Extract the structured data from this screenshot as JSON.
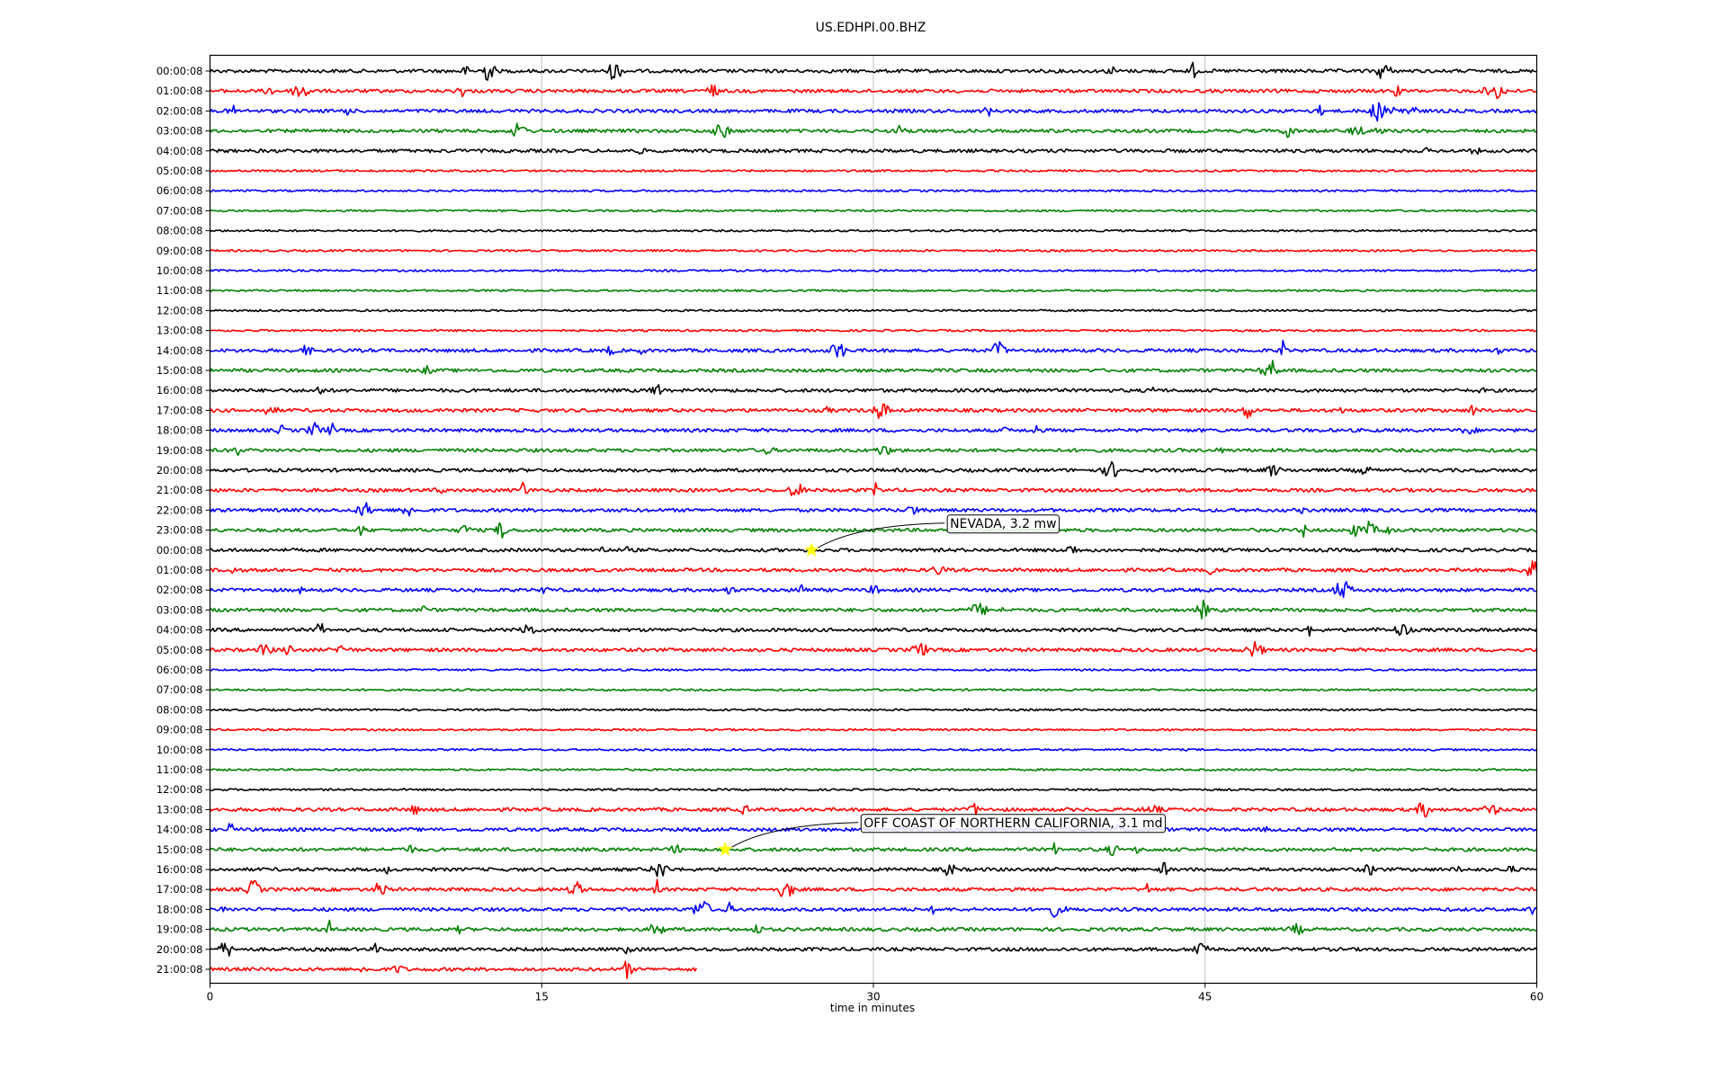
{
  "chart_data": {
    "type": "line",
    "subtype": "helicorder",
    "title": "US.EDHPI.00.BHZ",
    "xlabel": "time in minutes",
    "ylabel": "",
    "xlim": [
      0,
      60
    ],
    "xticks": [
      0,
      15,
      30,
      45,
      60
    ],
    "xtick_labels": [
      "0",
      "15",
      "30",
      "45",
      "60"
    ],
    "grid": "vertical lines at 15, 30, 45",
    "trace_color_cycle": [
      "#000000",
      "#ff0000",
      "#0000ff",
      "#008000"
    ],
    "last_row_end_minute": 22,
    "row_labels": [
      "00:00:08",
      "01:00:08",
      "02:00:08",
      "03:00:08",
      "04:00:08",
      "05:00:08",
      "06:00:08",
      "07:00:08",
      "08:00:08",
      "09:00:08",
      "10:00:08",
      "11:00:08",
      "12:00:08",
      "13:00:08",
      "14:00:08",
      "15:00:08",
      "16:00:08",
      "17:00:08",
      "18:00:08",
      "19:00:08",
      "20:00:08",
      "21:00:08",
      "22:00:08",
      "23:00:08",
      "00:00:08",
      "01:00:08",
      "02:00:08",
      "03:00:08",
      "04:00:08",
      "05:00:08",
      "06:00:08",
      "07:00:08",
      "08:00:08",
      "09:00:08",
      "10:00:08",
      "11:00:08",
      "12:00:08",
      "13:00:08",
      "14:00:08",
      "15:00:08",
      "16:00:08",
      "17:00:08",
      "18:00:08",
      "19:00:08",
      "20:00:08",
      "21:00:08"
    ],
    "events": [
      {
        "label": "NEVADA, 3.2 mw",
        "row": 24,
        "minute": 27.2
      },
      {
        "label": "OFF COAST OF NORTHERN CALIFORNIA, 3.1 md",
        "row": 39,
        "minute": 23.3
      }
    ],
    "event_marker_color": "#ffff00"
  }
}
